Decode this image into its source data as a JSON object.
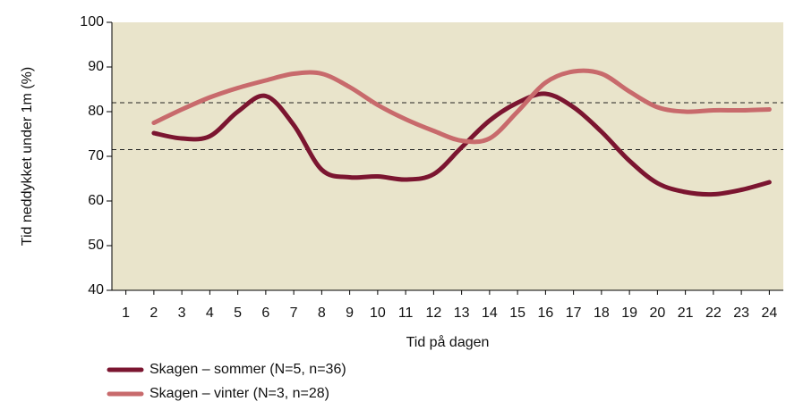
{
  "chart_data": {
    "type": "line",
    "y_label": "Tid neddykket under 1m (%)",
    "x_label": "Tid på dagen",
    "x": [
      2,
      3,
      4,
      5,
      6,
      7,
      8,
      9,
      10,
      11,
      12,
      13,
      14,
      15,
      16,
      17,
      18,
      19,
      20,
      21,
      22,
      23,
      24
    ],
    "series": [
      {
        "name": "Skagen – sommer (N=5, n=36)",
        "color": "#7b1530",
        "values": [
          75.2,
          74,
          74.5,
          80,
          83.5,
          77,
          67,
          65.3,
          65.5,
          64.8,
          66,
          72,
          78,
          82,
          84,
          81,
          75.5,
          69,
          64,
          62,
          61.5,
          62.5,
          64.2
        ]
      },
      {
        "name": "Skagen – vinter (N=3, n=28)",
        "color": "#c86a6c",
        "values": [
          77.5,
          80.5,
          83.2,
          85.3,
          87,
          88.5,
          88.5,
          85.5,
          81.5,
          78.3,
          75.7,
          73.5,
          74,
          80,
          86.5,
          89,
          88.5,
          84.5,
          81,
          80,
          80.3,
          80.3,
          80.5
        ]
      }
    ],
    "reference_lines": [
      82,
      71.5
    ],
    "xlim": [
      0.5,
      24.5
    ],
    "xticks": [
      1,
      2,
      3,
      4,
      5,
      6,
      7,
      8,
      9,
      10,
      11,
      12,
      13,
      14,
      15,
      16,
      17,
      18,
      19,
      20,
      21,
      22,
      23,
      24
    ],
    "ylim": [
      40,
      100
    ],
    "yticks": [
      40,
      50,
      60,
      70,
      80,
      90,
      100
    ],
    "background": "#e9e4cb"
  }
}
